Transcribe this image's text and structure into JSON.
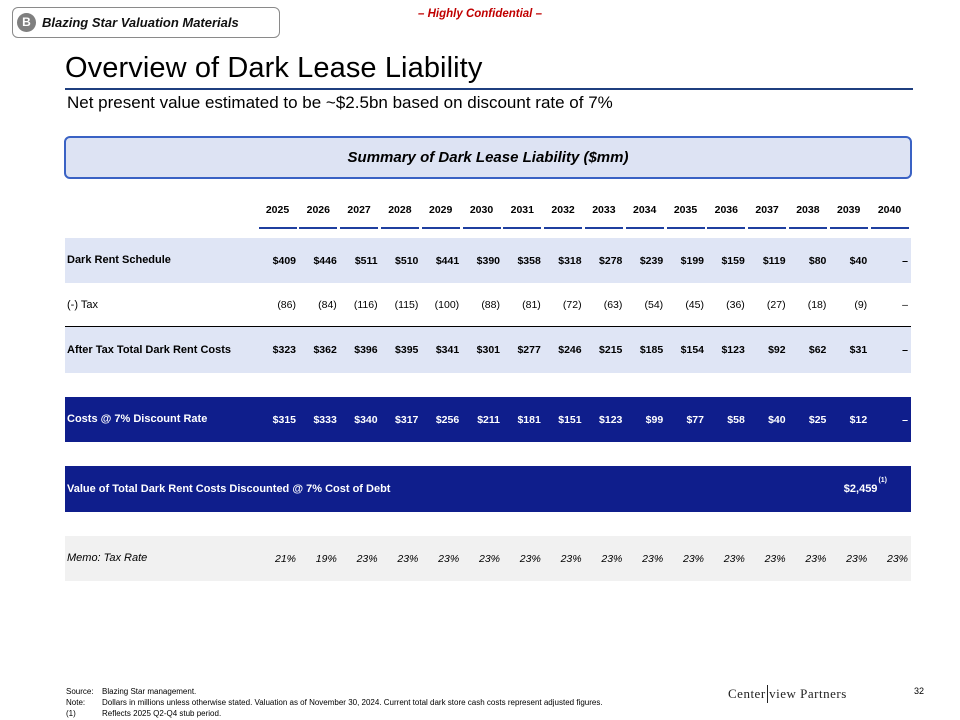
{
  "header": {
    "section_letter": "B",
    "section_label": "Blazing Star Valuation Materials",
    "confidential": "– Highly Confidential –",
    "title": "Overview of Dark Lease Liability",
    "subtitle": "Net present value estimated to be ~$2.5bn based on discount rate of 7%"
  },
  "summary_title": "Summary of Dark Lease Liability ($mm)",
  "table": {
    "years": [
      "2025",
      "2026",
      "2027",
      "2028",
      "2029",
      "2030",
      "2031",
      "2032",
      "2033",
      "2034",
      "2035",
      "2036",
      "2037",
      "2038",
      "2039",
      "2040"
    ],
    "rows": [
      {
        "id": "dark-rent-schedule",
        "label": "Dark Rent Schedule",
        "values": [
          "$409",
          "$446",
          "$511",
          "$510",
          "$441",
          "$390",
          "$358",
          "$318",
          "$278",
          "$239",
          "$199",
          "$159",
          "$119",
          "$80",
          "$40",
          "–"
        ]
      },
      {
        "id": "tax",
        "label": "(-) Tax",
        "values": [
          "(86)",
          "(84)",
          "(116)",
          "(115)",
          "(100)",
          "(88)",
          "(81)",
          "(72)",
          "(63)",
          "(54)",
          "(45)",
          "(36)",
          "(27)",
          "(18)",
          "(9)",
          "–"
        ]
      },
      {
        "id": "after-tax-total",
        "label": "After Tax Total Dark Rent Costs",
        "values": [
          "$323",
          "$362",
          "$396",
          "$395",
          "$341",
          "$301",
          "$277",
          "$246",
          "$215",
          "$185",
          "$154",
          "$123",
          "$92",
          "$62",
          "$31",
          "–"
        ]
      },
      {
        "id": "discounted-costs",
        "label": "Costs @ 7% Discount Rate",
        "values": [
          "$315",
          "$333",
          "$340",
          "$317",
          "$256",
          "$211",
          "$181",
          "$151",
          "$123",
          "$99",
          "$77",
          "$58",
          "$40",
          "$25",
          "$12",
          "–"
        ]
      },
      {
        "id": "memo-tax-rate",
        "label": "Memo: Tax Rate",
        "values": [
          "21%",
          "19%",
          "23%",
          "23%",
          "23%",
          "23%",
          "23%",
          "23%",
          "23%",
          "23%",
          "23%",
          "23%",
          "23%",
          "23%",
          "23%",
          "23%"
        ]
      }
    ],
    "total_row": {
      "label": "Value of Total Dark Rent Costs Discounted @ 7% Cost of Debt",
      "value": "$2,459",
      "footnote_marker": "(1)"
    }
  },
  "footnotes": [
    {
      "key": "Source:",
      "text": "Blazing Star management."
    },
    {
      "key": "Note:",
      "text": "Dollars in millions unless otherwise stated. Valuation as of November 30, 2024. Current total dark store cash costs represent adjusted figures."
    },
    {
      "key": "(1)",
      "text": "Reflects 2025 Q2-Q4 stub period."
    }
  ],
  "logo": {
    "left": "Center",
    "right": "view Partners"
  },
  "page_number": "32"
}
